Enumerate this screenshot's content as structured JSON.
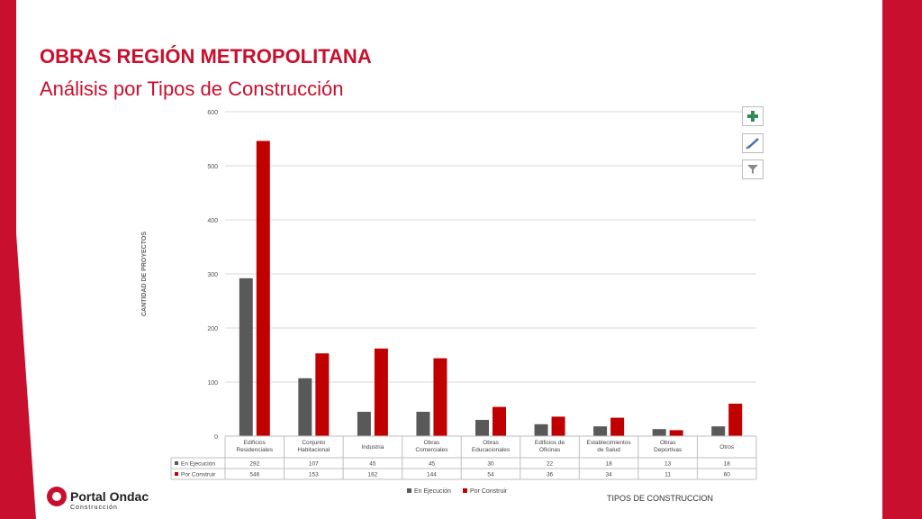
{
  "slide": {
    "title": "OBRAS REGIÓN METROPOLITANA",
    "subtitle": "Análisis por Tipos de Construcción",
    "brand_name": "Portal Ondac",
    "brand_sub": "Construcción"
  },
  "toolbar": {
    "add_icon": "plus-icon",
    "style_icon": "brush-icon",
    "filter_icon": "filter-icon"
  },
  "colors": {
    "accent": "#c8102e",
    "series1": "#595959",
    "series2": "#c00000"
  },
  "chart_data": {
    "type": "bar",
    "ylabel": "CANTIDAD DE PROYECTOS",
    "xlabel": "TIPOS DE CONSTRUCCION",
    "ylim": [
      0,
      600
    ],
    "yticks": [
      "0",
      "100",
      "200",
      "300",
      "400",
      "500",
      "600"
    ],
    "grid": true,
    "legend_position": "bottom",
    "categories": [
      [
        "Edificios",
        "Residenciales"
      ],
      [
        "Conjunto",
        "Habitacional"
      ],
      [
        "Industria"
      ],
      [
        "Obras",
        "Comerciales"
      ],
      [
        "Obras",
        "Educacionales"
      ],
      [
        "Edificios de",
        "Oficinas"
      ],
      [
        "Establecimientos",
        "de Salud"
      ],
      [
        "Obras",
        "Deportivas"
      ],
      [
        "Otros"
      ]
    ],
    "series": [
      {
        "name": "En Ejecución",
        "values": [
          292,
          107,
          45,
          45,
          30,
          22,
          18,
          13,
          18
        ]
      },
      {
        "name": "Por Construir",
        "values": [
          546,
          153,
          162,
          144,
          54,
          36,
          34,
          11,
          60
        ]
      }
    ]
  }
}
